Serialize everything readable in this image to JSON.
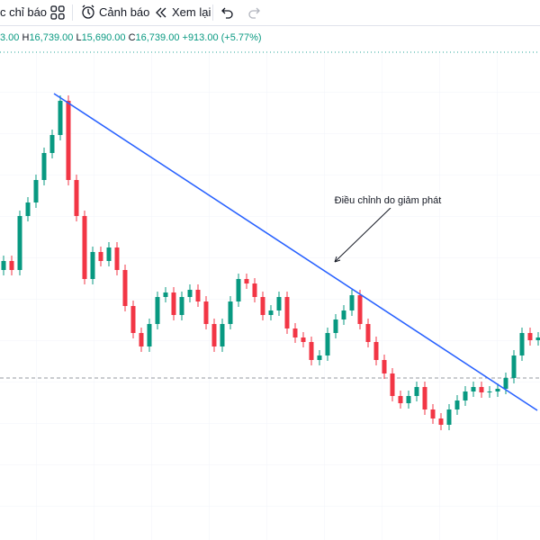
{
  "toolbar": {
    "indicators": "c chỉ báo",
    "alerts": "Cảnh báo",
    "replay": "Xem lại"
  },
  "legend": {
    "open": "3.00",
    "high_label": "H",
    "high": "16,739.00",
    "low_label": "L",
    "low": "15,690.00",
    "close_label": "C",
    "close": "16,739.00",
    "change": "+913.00 (+5.77%)"
  },
  "chart_data": {
    "type": "candlestick",
    "annotation": "Điều chỉnh do giảm phát",
    "up_color": "#089981",
    "down_color": "#f23645",
    "series": {
      "open": [
        300,
        310,
        300,
        360,
        375,
        400,
        430,
        450,
        488,
        400,
        360,
        290,
        320,
        310,
        325,
        300,
        260,
        230,
        215,
        240,
        270,
        275,
        250,
        270,
        278,
        265,
        240,
        215,
        240,
        265,
        290,
        285,
        270,
        250,
        255,
        270,
        235,
        225,
        220,
        200,
        205,
        230,
        245,
        255,
        272,
        240,
        220,
        200,
        185,
        160,
        152,
        160,
        170,
        145,
        135,
        128,
        145,
        155,
        165,
        170,
        164,
        165,
        168,
        180,
        205,
        230,
        222
      ],
      "high": [
        316,
        316,
        366,
        381,
        406,
        436,
        456,
        494,
        494,
        406,
        366,
        326,
        326,
        331,
        331,
        306,
        266,
        236,
        246,
        276,
        281,
        281,
        276,
        284,
        284,
        271,
        246,
        246,
        271,
        296,
        296,
        291,
        276,
        261,
        276,
        276,
        241,
        231,
        226,
        211,
        236,
        251,
        261,
        278,
        278,
        246,
        226,
        206,
        191,
        166,
        166,
        176,
        176,
        151,
        141,
        151,
        161,
        171,
        176,
        176,
        171,
        174,
        186,
        211,
        236,
        236,
        231
      ],
      "low": [
        294,
        294,
        294,
        354,
        369,
        394,
        424,
        444,
        394,
        354,
        284,
        284,
        304,
        304,
        294,
        254,
        224,
        209,
        209,
        234,
        264,
        244,
        244,
        264,
        259,
        234,
        209,
        209,
        234,
        259,
        279,
        264,
        244,
        244,
        249,
        229,
        219,
        214,
        194,
        194,
        199,
        224,
        239,
        249,
        234,
        214,
        194,
        179,
        154,
        146,
        146,
        154,
        139,
        129,
        122,
        122,
        139,
        149,
        159,
        158,
        158,
        159,
        162,
        174,
        199,
        216,
        216
      ],
      "close": [
        310,
        300,
        360,
        375,
        400,
        430,
        450,
        488,
        400,
        360,
        290,
        320,
        310,
        325,
        300,
        260,
        230,
        215,
        240,
        270,
        275,
        250,
        270,
        278,
        265,
        240,
        215,
        240,
        265,
        290,
        285,
        270,
        250,
        255,
        270,
        235,
        225,
        220,
        200,
        205,
        230,
        245,
        255,
        272,
        240,
        220,
        200,
        185,
        160,
        152,
        160,
        170,
        145,
        135,
        128,
        145,
        155,
        165,
        170,
        164,
        165,
        168,
        180,
        205,
        230,
        222,
        225
      ]
    }
  }
}
